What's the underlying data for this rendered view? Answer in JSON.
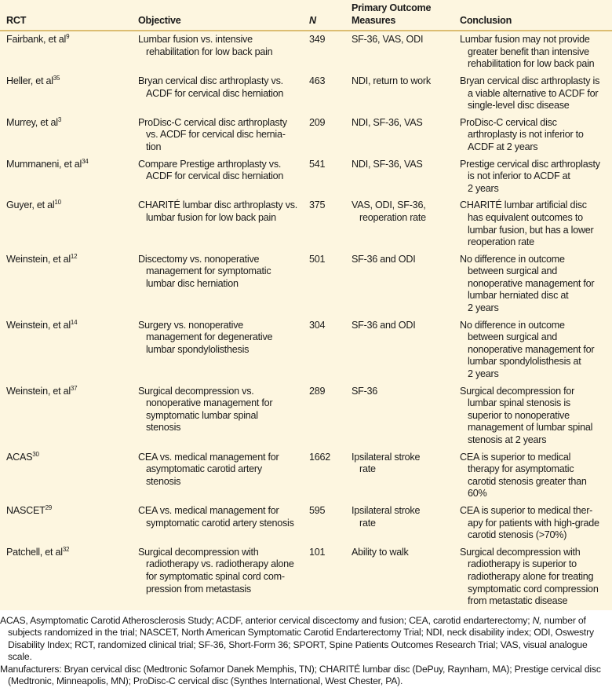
{
  "table": {
    "headers": [
      "RCT",
      "Objective",
      "N",
      "Primary Outcome\nMeasures",
      "Conclusion"
    ],
    "rows": [
      {
        "study": "Fairbank, et al",
        "ref": "9",
        "objective": "Lumbar fusion vs. intensive\nrehabilitation for low back pain",
        "n": "349",
        "measures": "SF-36, VAS, ODI",
        "conclusion": "Lumbar fusion may not provide\ngreater benefit than intensive\nrehabilitation for low back pain"
      },
      {
        "study": "Heller, et al",
        "ref": "35",
        "objective": "Bryan cervical disc arthroplasty vs.\nACDF for cervical disc herniation",
        "n": "463",
        "measures": "NDI, return to work",
        "conclusion": "Bryan cervical disc arthroplasty is\na viable alternative to ACDF for\nsingle-level disc disease"
      },
      {
        "study": "Murrey, et al",
        "ref": "3",
        "objective": "ProDisc-C cervical disc arthroplasty\nvs. ACDF for cervical disc hernia-\ntion",
        "n": "209",
        "measures": "NDI, SF-36, VAS",
        "conclusion": "ProDisc-C cervical disc\narthroplasty is not inferior to\nACDF at 2 years"
      },
      {
        "study": "Mummaneni, et al",
        "ref": "34",
        "objective": "Compare Prestige arthroplasty vs.\nACDF for cervical disc herniation",
        "n": "541",
        "measures": "NDI, SF-36, VAS",
        "conclusion": "Prestige cervical disc arthroplasty\nis not inferior to ACDF at\n2 years"
      },
      {
        "study": "Guyer, et al",
        "ref": "10",
        "objective": "CHARITÉ lumbar disc arthroplasty vs.\nlumbar fusion for low back pain",
        "n": "375",
        "measures": "VAS, ODI, SF-36,\nreoperation rate",
        "conclusion": "CHARITÉ lumbar artificial disc\nhas equivalent outcomes to\nlumbar fusion, but has a lower\nreoperation rate"
      },
      {
        "study": "Weinstein, et al",
        "ref": "12",
        "objective": "Discectomy vs. nonoperative\nmanagement for symptomatic\nlumbar disc herniation",
        "n": "501",
        "measures": "SF-36 and ODI",
        "conclusion": "No difference in outcome\nbetween surgical and\nnonoperative management for\nlumbar herniated disc at\n2 years"
      },
      {
        "study": "Weinstein, et al",
        "ref": "14",
        "objective": "Surgery vs. nonoperative\nmanagement for degenerative\nlumbar spondylolisthesis",
        "n": "304",
        "measures": "SF-36 and ODI",
        "conclusion": "No difference in outcome\nbetween surgical and\nnonoperative management for\nlumbar spondylolisthesis at\n2 years"
      },
      {
        "study": "Weinstein, et al",
        "ref": "37",
        "objective": "Surgical decompression vs.\nnonoperative management for\nsymptomatic lumbar spinal\nstenosis",
        "n": "289",
        "measures": "SF-36",
        "conclusion": "Surgical decompression for\nlumbar spinal stenosis is\nsuperior to nonoperative\nmanagement of lumbar spinal\nstenosis at 2 years"
      },
      {
        "study": "ACAS",
        "ref": "30",
        "objective": "CEA vs. medical management for\nasymptomatic carotid artery\nstenosis",
        "n": "1662",
        "measures": "Ipsilateral stroke\nrate",
        "conclusion": "CEA is superior to medical\ntherapy for asymptomatic\ncarotid stenosis greater than\n60%"
      },
      {
        "study": "NASCET",
        "ref": "29",
        "objective": "CEA vs. medical management for\nsymptomatic carotid artery stenosis",
        "n": "595",
        "measures": "Ipsilateral stroke\nrate",
        "conclusion": "CEA is superior to medical ther-\napy for patients with high-grade\ncarotid stenosis (>70%)"
      },
      {
        "study": "Patchell, et al",
        "ref": "32",
        "objective": "Surgical decompression with\nradiotherapy vs. radiotherapy alone\nfor symptomatic spinal cord com-\npression from metastasis",
        "n": "101",
        "measures": "Ability to walk",
        "conclusion": "Surgical decompression with\nradiotherapy is superior to\nradiotherapy alone for treating\nsymptomatic cord compression\nfrom metastatic disease"
      }
    ]
  },
  "notes": {
    "abbreviations_pre": "ACAS, Asymptomatic Carotid Atherosclerosis Study; ACDF, anterior cervical discectomy and fusion; CEA, carotid endarterectomy; ",
    "abbreviations_n": "N,",
    "abbreviations_post": " number of subjects randomized in the trial; NASCET, North American Symptomatic Carotid Endarterectomy Trial; NDI, neck disability index; ODI, Oswestry Disability Index; RCT, randomized clinical trial; SF-36, Short-Form 36; SPORT, Spine Patients Outcomes Research Trial; VAS, visual analogue scale.",
    "manufacturers": "Manufacturers: Bryan cervical disc (Medtronic Sofamor Danek Memphis, TN); CHARITÉ lumbar disc (DePuy, Raynham, MA); Prestige cervical disc (Medtronic, Minneapolis, MN); ProDisc-C cervical disc (Synthes International, West Chester, PA)."
  },
  "colors": {
    "table_background": "#fdf6e0",
    "header_rule": "#dcbd72"
  }
}
